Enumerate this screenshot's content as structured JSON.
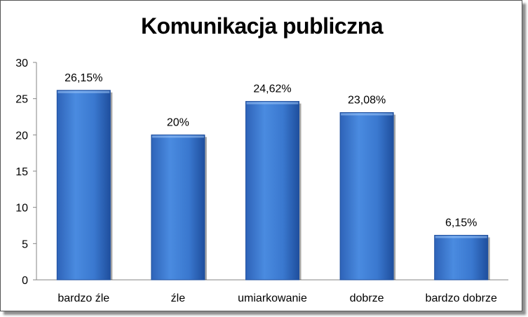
{
  "chart_data": {
    "type": "bar",
    "title": "Komunikacja publiczna",
    "categories": [
      "bardzo źle",
      "źle",
      "umiarkowanie",
      "dobrze",
      "bardzo dobrze"
    ],
    "values": [
      26.15,
      20,
      24.62,
      23.08,
      6.15
    ],
    "data_labels": [
      "26,15%",
      "20%",
      "24,62%",
      "23,08%",
      "6,15%"
    ],
    "yticks": [
      "0",
      "5",
      "10",
      "15",
      "20",
      "25",
      "30"
    ],
    "ylim": [
      0,
      30
    ],
    "grid": false,
    "legend": "none",
    "bar_color": "#3F7FD0",
    "bar_color_dark": "#1F4F9E"
  }
}
